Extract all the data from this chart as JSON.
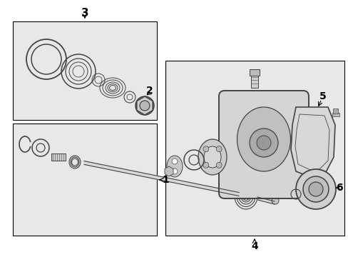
{
  "bg_color": "#ffffff",
  "box_fill": "#e8e8e8",
  "box_edge": "#000000",
  "label_color": "#000000",
  "figsize": [
    4.89,
    3.6
  ],
  "dpi": 100
}
